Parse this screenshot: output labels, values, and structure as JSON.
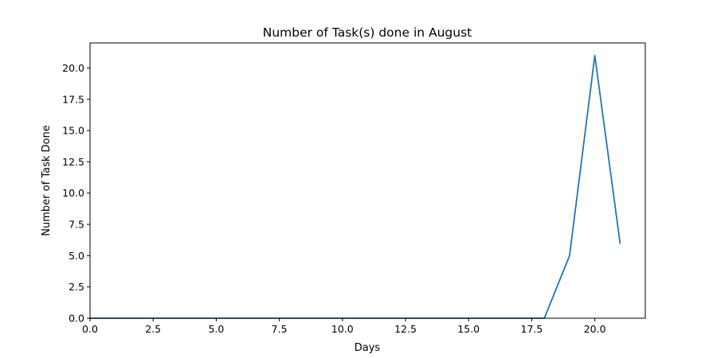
{
  "chart_data": {
    "type": "line",
    "title": "Number of Task(s) done in August",
    "xlabel": "Days",
    "ylabel": "Number of Task Done",
    "xlim": [
      0,
      22
    ],
    "ylim": [
      0,
      22
    ],
    "xticks": [
      0.0,
      2.5,
      5.0,
      7.5,
      10.0,
      12.5,
      15.0,
      17.5,
      20.0
    ],
    "xtick_labels": [
      "0.0",
      "2.5",
      "5.0",
      "7.5",
      "10.0",
      "12.5",
      "15.0",
      "17.5",
      "20.0"
    ],
    "yticks": [
      0.0,
      2.5,
      5.0,
      7.5,
      10.0,
      12.5,
      15.0,
      17.5,
      20.0
    ],
    "ytick_labels": [
      "0.0",
      "2.5",
      "5.0",
      "7.5",
      "10.0",
      "12.5",
      "15.0",
      "17.5",
      "20.0"
    ],
    "grid": false,
    "series": [
      {
        "color": "#1f77b4",
        "x": [
          0,
          1,
          2,
          3,
          4,
          5,
          6,
          7,
          8,
          9,
          10,
          11,
          12,
          13,
          14,
          15,
          16,
          17,
          18,
          19,
          20,
          21
        ],
        "y": [
          0,
          0,
          0,
          0,
          0,
          0,
          0,
          0,
          0,
          0,
          0,
          0,
          0,
          0,
          0,
          0,
          0,
          0,
          0,
          5,
          21,
          6
        ]
      }
    ]
  }
}
